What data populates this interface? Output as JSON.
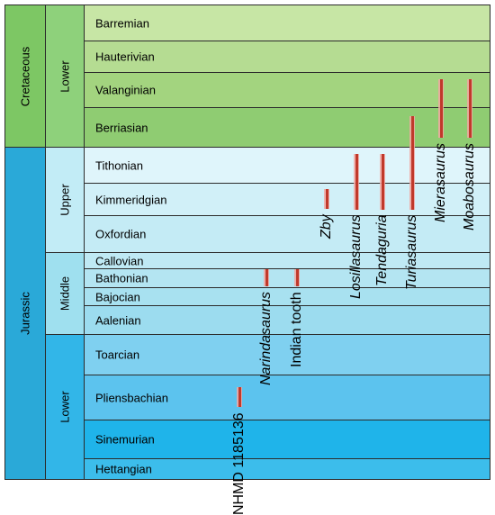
{
  "periods": [
    {
      "label": "Cretaceous",
      "color": "#7dc764",
      "from": "Barremian",
      "to": "Berriasian"
    },
    {
      "label": "Jurassic",
      "color": "#2aa9d8",
      "from": "Tithonian",
      "to": "Hettangian"
    }
  ],
  "epochs": [
    {
      "label": "Lower",
      "color": "#8ed17b",
      "from": "Barremian",
      "to": "Berriasian"
    },
    {
      "label": "Upper",
      "color": "#c2ecf6",
      "from": "Tithonian",
      "to": "Oxfordian"
    },
    {
      "label": "Middle",
      "color": "#9fe0ef",
      "from": "Callovian",
      "to": "Aalenian"
    },
    {
      "label": "Lower",
      "color": "#32b6e8",
      "from": "Toarcian",
      "to": "Hettangian"
    }
  ],
  "stages": [
    {
      "label": "Barremian",
      "color": "#c7e6a5"
    },
    {
      "label": "Hauterivian",
      "color": "#b5dc92"
    },
    {
      "label": "Valanginian",
      "color": "#a3d47f"
    },
    {
      "label": "Berriasian",
      "color": "#8fcc72"
    },
    {
      "label": "Tithonian",
      "color": "#dff5fb"
    },
    {
      "label": "Kimmeridgian",
      "color": "#d1f0f8"
    },
    {
      "label": "Oxfordian",
      "color": "#c4ebf5"
    },
    {
      "label": "Callovian",
      "color": "#bfe9f4"
    },
    {
      "label": "Bathonian",
      "color": "#b4e5f2"
    },
    {
      "label": "Bajocian",
      "color": "#a8e1f0"
    },
    {
      "label": "Aalenian",
      "color": "#9cdcef"
    },
    {
      "label": "Toarcian",
      "color": "#7fd0f0"
    },
    {
      "label": "Pliensbachian",
      "color": "#5cc3ee"
    },
    {
      "label": "Sinemurian",
      "color": "#1fb4ea"
    },
    {
      "label": "Hettangian",
      "color": "#3cbdeb"
    }
  ],
  "taxa": [
    {
      "label": "NHMD 1185136",
      "italic": false,
      "from": "Pliensbachian",
      "to": "Pliensbachian"
    },
    {
      "label": "Narindasaurus",
      "italic": true,
      "from": "Bathonian",
      "to": "Bathonian"
    },
    {
      "label": "Indian tooth",
      "italic": false,
      "from": "Bathonian",
      "to": "Bathonian"
    },
    {
      "label": "Zby",
      "italic": true,
      "from": "Kimmeridgian",
      "to": "Kimmeridgian"
    },
    {
      "label": "Losillasaurus",
      "italic": true,
      "from": "Tithonian",
      "to": "Kimmeridgian"
    },
    {
      "label": "Tendaguria",
      "italic": true,
      "from": "Tithonian",
      "to": "Kimmeridgian"
    },
    {
      "label": "Turiasaurus",
      "italic": true,
      "from": "Berriasian",
      "to": "Kimmeridgian"
    },
    {
      "label": "Mierasaurus",
      "italic": true,
      "from": "Valanginian",
      "to": "Berriasian"
    },
    {
      "label": "Moabosaurus",
      "italic": true,
      "from": "Valanginian",
      "to": "Berriasian"
    }
  ]
}
